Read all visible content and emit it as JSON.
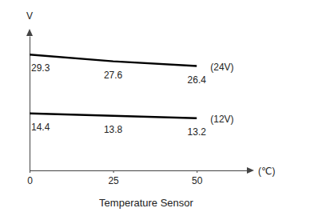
{
  "chart_data": {
    "type": "line",
    "title": "Temperature Sensor",
    "x_label": "(℃)",
    "y_label": "V",
    "x": [
      0,
      25,
      50
    ],
    "xlim": [
      0,
      65
    ],
    "xticks": [
      0,
      25,
      50
    ],
    "ylim": [
      0,
      34
    ],
    "tick_labels": "x",
    "data_labels": true,
    "grid": false,
    "series": [
      {
        "name": "(24V)",
        "color": "#000000",
        "values": [
          29.3,
          27.6,
          26.4
        ]
      },
      {
        "name": "(12V)",
        "color": "#000000",
        "values": [
          14.4,
          13.8,
          13.2
        ]
      }
    ]
  }
}
